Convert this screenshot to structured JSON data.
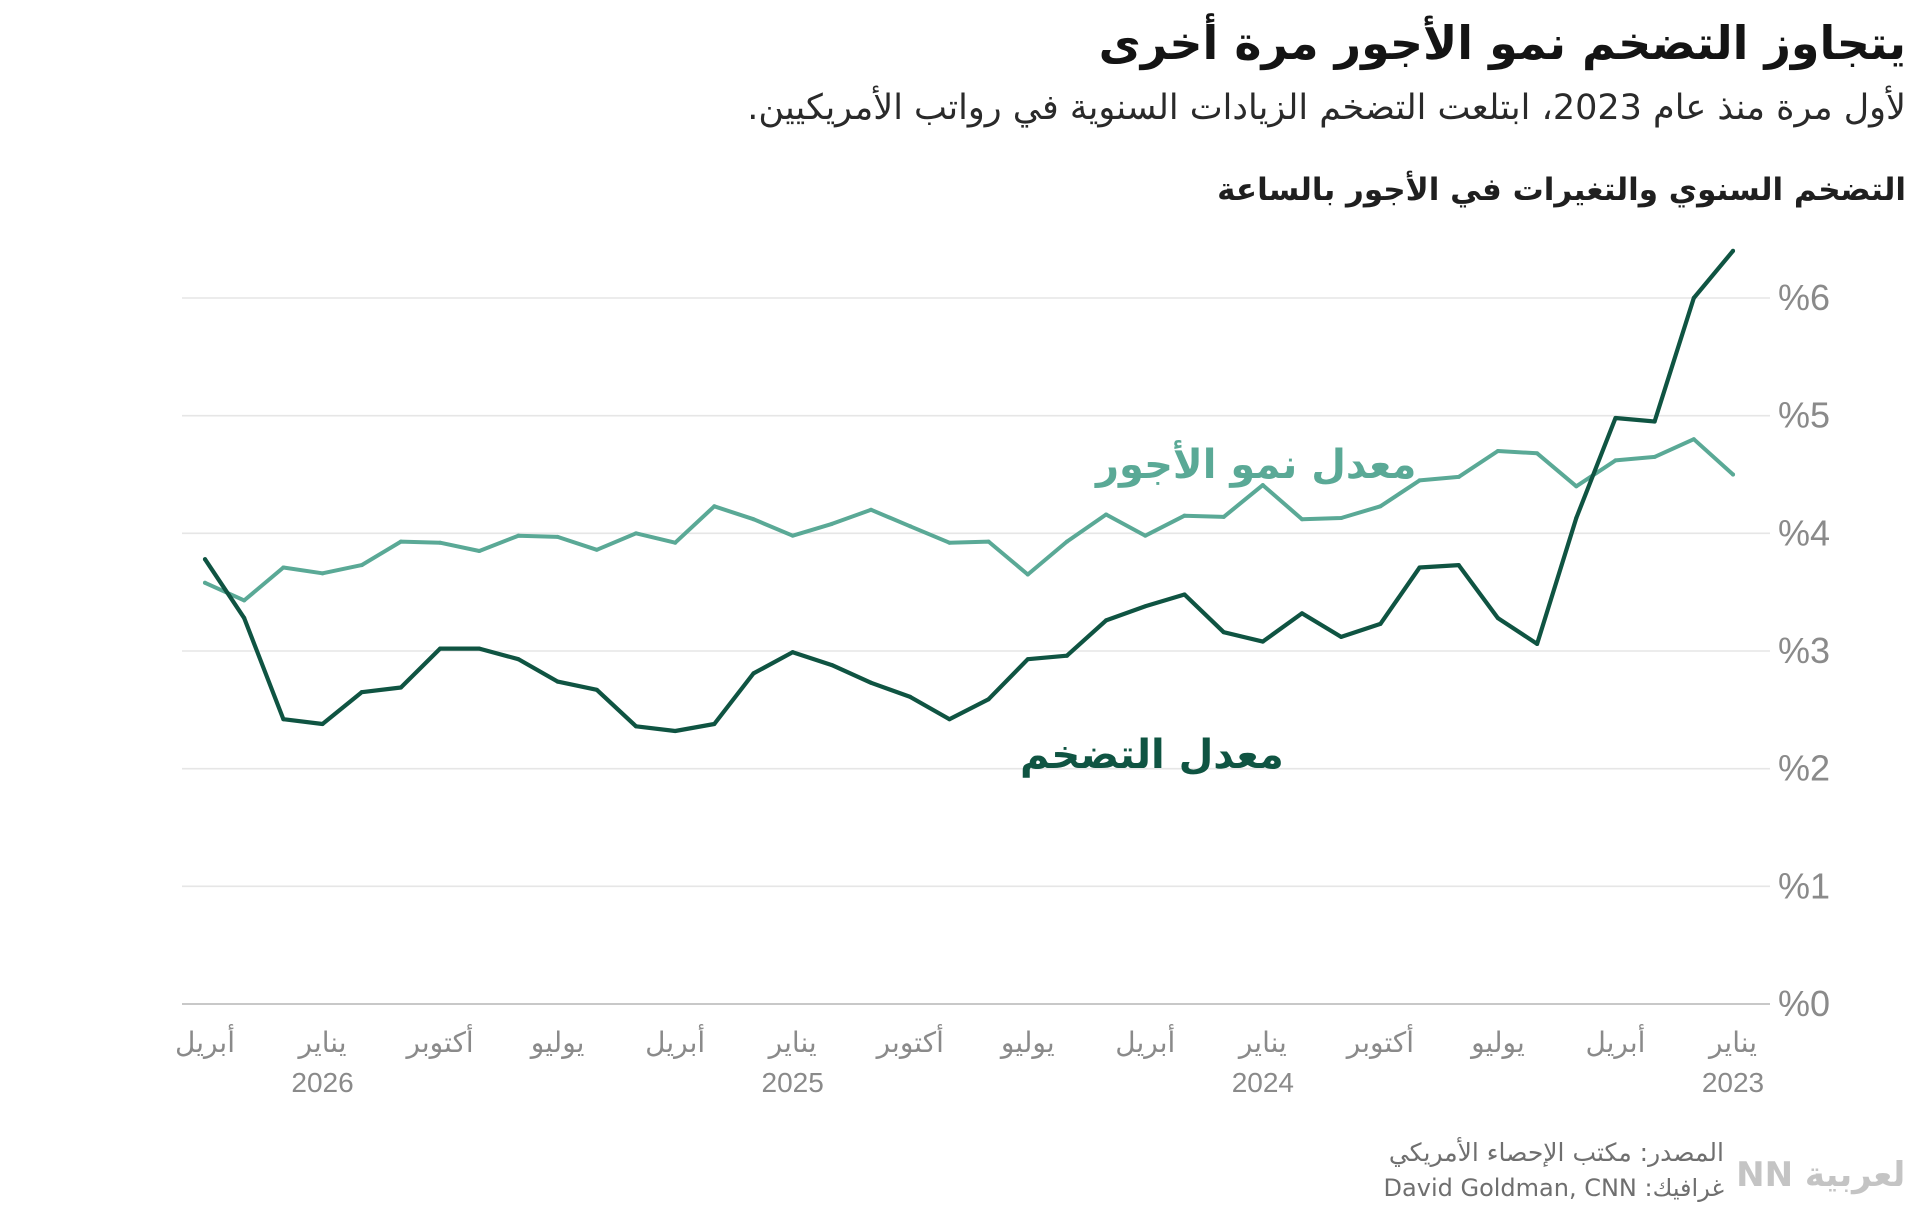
{
  "header": {
    "title": "يتجاوز التضخم نمو الأجور مرة أخرى",
    "subtitle": "لأول مرة منذ عام 2023، ابتلعت التضخم الزيادات السنوية في رواتب الأمريكيين.",
    "chart_label": "التضخم السنوي والتغيرات في الأجور بالساعة"
  },
  "footer": {
    "source": "المصدر: مكتب الإحصاء الأمريكي",
    "credit": "غرافيك: David Goldman, CNN",
    "logo_text": "CNN بالعربية"
  },
  "colors": {
    "wage": "#5aa996",
    "inflation": "#0f5442",
    "grid": "#e6e6e6",
    "axis": "#c8c8c8",
    "tick_text": "#8a8a8a"
  },
  "chart_data": {
    "type": "line",
    "title": "التضخم السنوي والتغيرات في الأجور بالساعة",
    "ylim": [
      0,
      6
    ],
    "yticks": [
      {
        "value": 0,
        "label": "%0"
      },
      {
        "value": 1,
        "label": "%1"
      },
      {
        "value": 2,
        "label": "%2"
      },
      {
        "value": 3,
        "label": "%3"
      },
      {
        "value": 4,
        "label": "%4"
      },
      {
        "value": 5,
        "label": "%5"
      },
      {
        "value": 6,
        "label": "%6"
      }
    ],
    "x_direction": "right-to-left",
    "x": [
      "2023-01",
      "2023-02",
      "2023-03",
      "2023-04",
      "2023-05",
      "2023-06",
      "2023-07",
      "2023-08",
      "2023-09",
      "2023-10",
      "2023-11",
      "2023-12",
      "2024-01",
      "2024-02",
      "2024-03",
      "2024-04",
      "2024-05",
      "2024-06",
      "2024-07",
      "2024-08",
      "2024-09",
      "2024-10",
      "2024-11",
      "2024-12",
      "2025-01",
      "2025-02",
      "2025-03",
      "2025-04",
      "2025-05",
      "2025-06",
      "2025-07",
      "2025-08",
      "2025-09",
      "2025-10",
      "2025-11",
      "2025-12",
      "2026-01",
      "2026-02",
      "2026-03",
      "2026-04"
    ],
    "xticks": [
      {
        "x": "2023-01",
        "month": "يناير",
        "year": "2023"
      },
      {
        "x": "2023-04",
        "month": "أبريل",
        "year": ""
      },
      {
        "x": "2023-07",
        "month": "يوليو",
        "year": ""
      },
      {
        "x": "2023-10",
        "month": "أكتوبر",
        "year": ""
      },
      {
        "x": "2024-01",
        "month": "يناير",
        "year": "2024"
      },
      {
        "x": "2024-04",
        "month": "أبريل",
        "year": ""
      },
      {
        "x": "2024-07",
        "month": "يوليو",
        "year": ""
      },
      {
        "x": "2024-10",
        "month": "أكتوبر",
        "year": ""
      },
      {
        "x": "2025-01",
        "month": "يناير",
        "year": "2025"
      },
      {
        "x": "2025-04",
        "month": "أبريل",
        "year": ""
      },
      {
        "x": "2025-07",
        "month": "يوليو",
        "year": ""
      },
      {
        "x": "2025-10",
        "month": "أكتوبر",
        "year": ""
      },
      {
        "x": "2026-01",
        "month": "يناير",
        "year": "2026"
      },
      {
        "x": "2026-04",
        "month": "أبريل",
        "year": ""
      }
    ],
    "series": [
      {
        "name": "معدل نمو الأجور",
        "key": "wage",
        "values": [
          4.5,
          4.8,
          4.65,
          4.62,
          4.4,
          4.68,
          4.7,
          4.48,
          4.45,
          4.23,
          4.13,
          4.12,
          4.41,
          4.14,
          4.15,
          3.98,
          4.16,
          3.93,
          3.65,
          3.93,
          3.92,
          4.06,
          4.2,
          4.08,
          3.98,
          4.12,
          4.23,
          3.92,
          4.0,
          3.86,
          3.97,
          3.98,
          3.85,
          3.92,
          3.93,
          3.73,
          3.66,
          3.71,
          3.43,
          3.58
        ]
      },
      {
        "name": "معدل التضخم",
        "key": "inflation",
        "values": [
          6.4,
          6.0,
          4.95,
          4.98,
          4.13,
          3.06,
          3.28,
          3.73,
          3.71,
          3.23,
          3.12,
          3.32,
          3.08,
          3.16,
          3.48,
          3.38,
          3.26,
          2.96,
          2.93,
          2.59,
          2.42,
          2.61,
          2.73,
          2.88,
          2.99,
          2.81,
          2.38,
          2.32,
          2.36,
          2.67,
          2.74,
          2.93,
          3.02,
          3.02,
          2.69,
          2.65,
          2.38,
          2.42,
          3.28,
          3.78
        ]
      }
    ],
    "annotations": [
      {
        "text": "معدل نمو الأجور",
        "series": "wage"
      },
      {
        "text": "معدل التضخم",
        "series": "inflation"
      }
    ],
    "grid": true,
    "legend": "inline-labels"
  }
}
